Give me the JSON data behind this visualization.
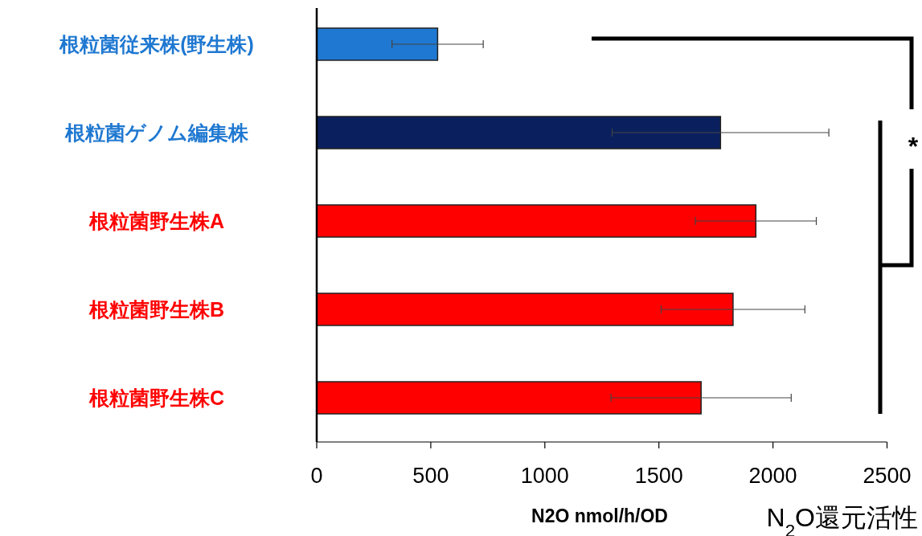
{
  "chart_data": {
    "type": "bar",
    "orientation": "horizontal",
    "categories": [
      "根粒菌従来株(野生株)",
      "根粒菌ゲノム編集株",
      "根粒菌野生株A",
      "根粒菌野生株B",
      "根粒菌野生株C"
    ],
    "values": [
      530,
      1770,
      1925,
      1825,
      1685
    ],
    "errors": [
      200,
      475,
      265,
      315,
      395
    ],
    "colors": [
      "#1f78d1",
      "#0a205e",
      "#ff0000",
      "#ff0000",
      "#ff0000"
    ],
    "xlim": [
      0,
      2500
    ],
    "xticks": [
      0,
      500,
      1000,
      1500,
      2000,
      2500
    ],
    "xlabel": "N2O nmol/h/OD",
    "annotations": [
      "*",
      "N$_{2}$O還元活性"
    ]
  }
}
